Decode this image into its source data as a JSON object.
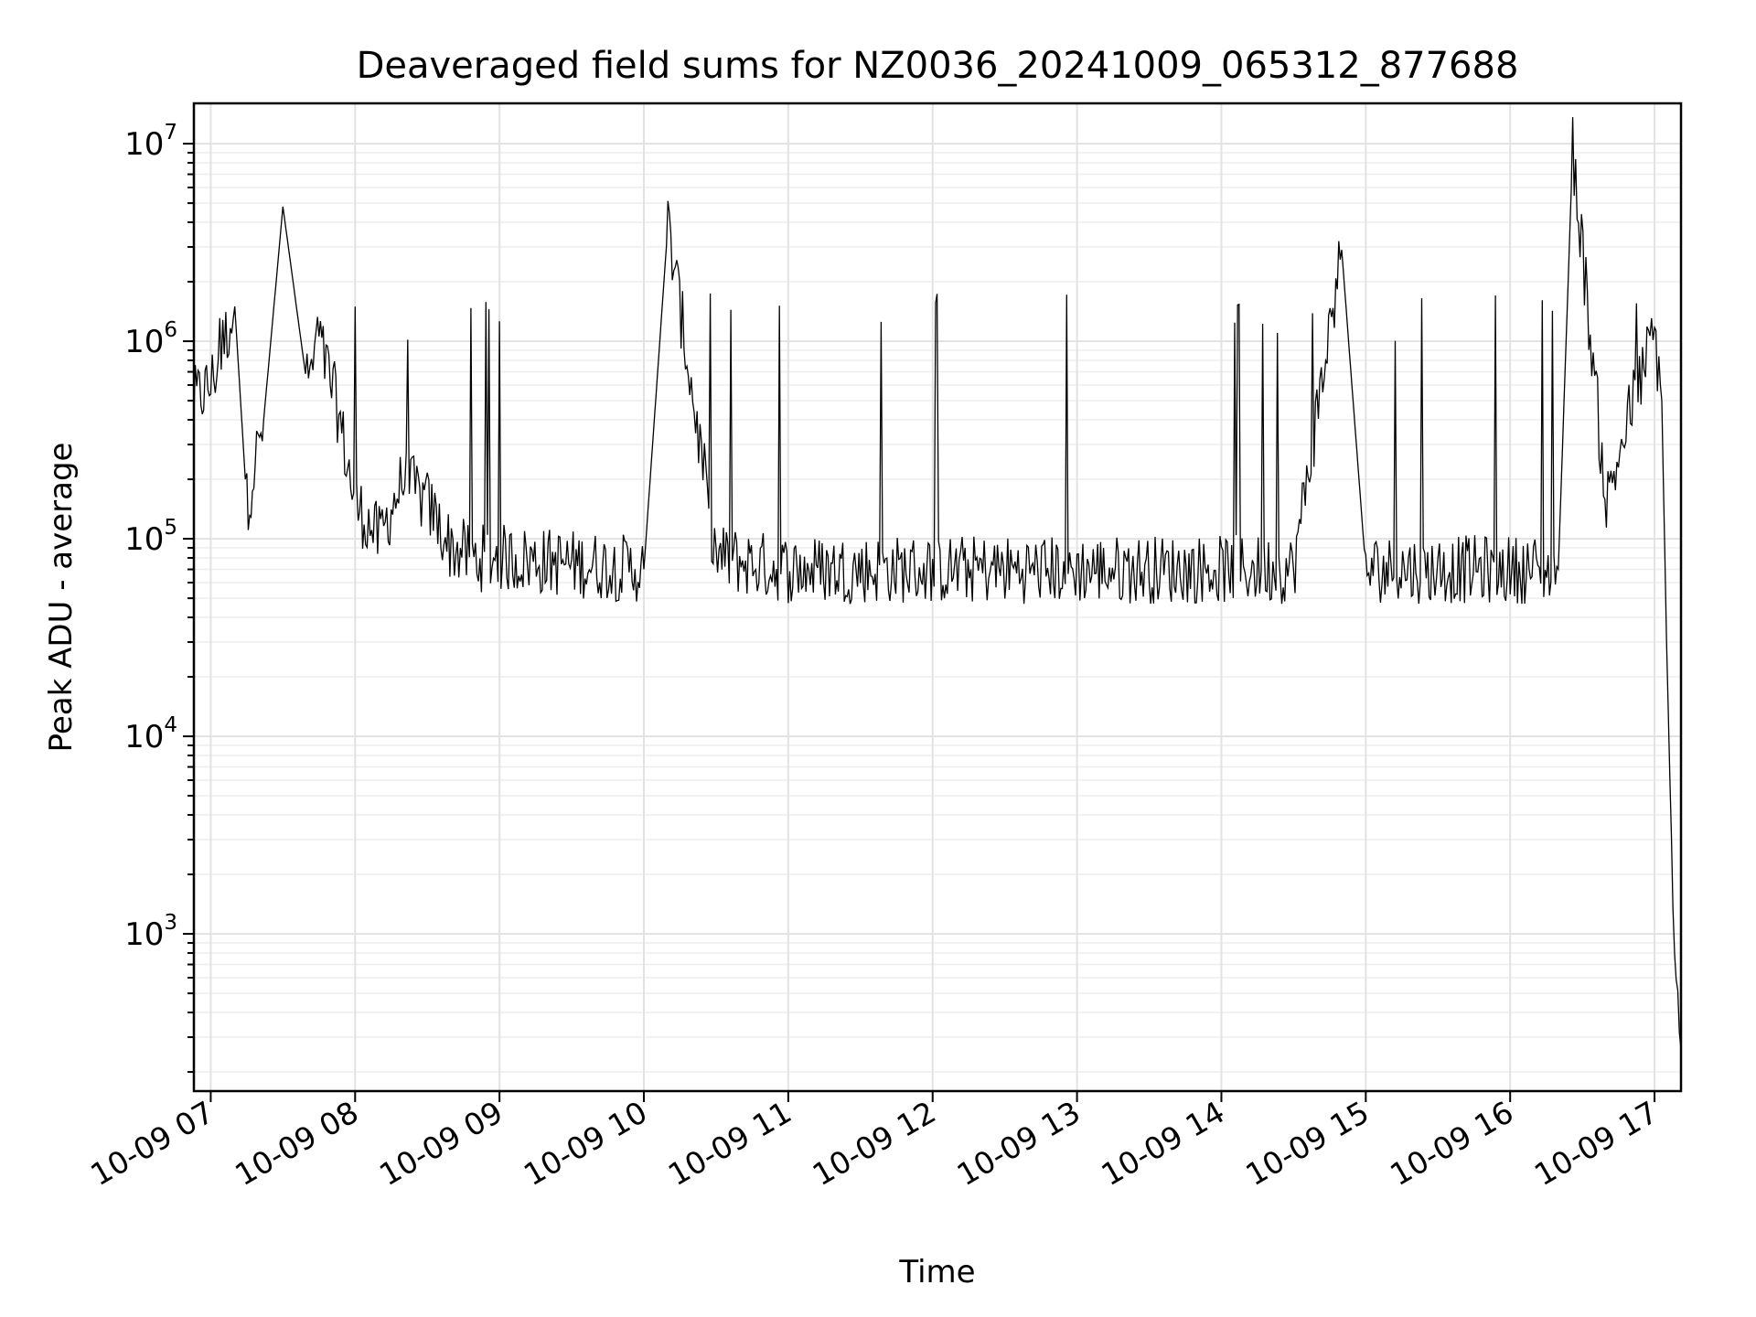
{
  "chart_data": {
    "type": "line",
    "title": "Deaveraged field sums for NZ0036_20241009_065312_877688",
    "xlabel": "Time",
    "ylabel": "Peak ADU - average",
    "yscale": "log",
    "grid": true,
    "xlim": [
      "2024-10-09 06:53",
      "2024-10-09 17:11"
    ],
    "ylim": [
      160,
      16000000
    ],
    "x_tick_labels": [
      "10-09 07",
      "10-09 08",
      "10-09 09",
      "10-09 10",
      "10-09 11",
      "10-09 12",
      "10-09 13",
      "10-09 14",
      "10-09 15",
      "10-09 16",
      "10-09 17"
    ],
    "y_ticks": [
      {
        "value": 1000,
        "base": "10",
        "exp": "3"
      },
      {
        "value": 10000,
        "base": "10",
        "exp": "4"
      },
      {
        "value": 100000,
        "base": "10",
        "exp": "5"
      },
      {
        "value": 1000000,
        "base": "10",
        "exp": "6"
      },
      {
        "value": 10000000,
        "base": "10",
        "exp": "7"
      }
    ],
    "series": [
      {
        "color": "#000000",
        "x": [
          "2024-10-09 06:53",
          "2024-10-09 07:00",
          "2024-10-09 07:10",
          "2024-10-09 07:15",
          "2024-10-09 07:22",
          "2024-10-09 07:30",
          "2024-10-09 07:40",
          "2024-10-09 07:45",
          "2024-10-09 07:52",
          "2024-10-09 08:00",
          "2024-10-09 08:10",
          "2024-10-09 08:20",
          "2024-10-09 08:30",
          "2024-10-09 08:40",
          "2024-10-09 08:50",
          "2024-10-09 09:00",
          "2024-10-09 09:30",
          "2024-10-09 10:00",
          "2024-10-09 10:10",
          "2024-10-09 10:30",
          "2024-10-09 11:00",
          "2024-10-09 11:30",
          "2024-10-09 12:00",
          "2024-10-09 12:30",
          "2024-10-09 13:00",
          "2024-10-09 13:30",
          "2024-10-09 14:00",
          "2024-10-09 14:30",
          "2024-10-09 14:50",
          "2024-10-09 15:00",
          "2024-10-09 15:30",
          "2024-10-09 16:00",
          "2024-10-09 16:20",
          "2024-10-09 16:26",
          "2024-10-09 16:40",
          "2024-10-09 16:50",
          "2024-10-09 17:00",
          "2024-10-09 17:03",
          "2024-10-09 17:05",
          "2024-10-09 17:07",
          "2024-10-09 17:09",
          "2024-10-09 17:11"
        ],
        "y": [
          500000,
          600000,
          1500000,
          150000,
          400000,
          4800000,
          600000,
          1000000,
          500000,
          150000,
          100000,
          200000,
          150000,
          90000,
          80000,
          80000,
          75000,
          70000,
          3900000,
          80000,
          70000,
          70000,
          70000,
          70000,
          70000,
          70000,
          70000,
          70000,
          2900000,
          70000,
          70000,
          70000,
          70000,
          9500000,
          150000,
          450000,
          1100000,
          500000,
          30000,
          3000,
          500,
          260
        ]
      }
    ]
  }
}
